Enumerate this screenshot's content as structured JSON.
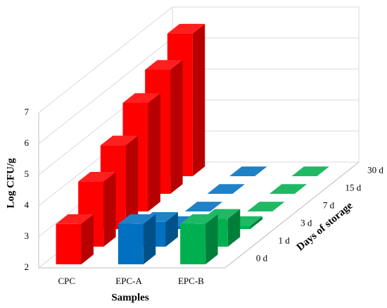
{
  "chart_data": {
    "type": "bar3d",
    "y_label": "Log CFU/g",
    "x_label": "Samples",
    "z_label": "Days of storage",
    "depth_categories": [
      "0 d",
      "1 d",
      "3 d",
      "7 d",
      "15 d",
      "30 d"
    ],
    "series": [
      {
        "name": "CPC",
        "color": "#ff0000",
        "values": [
          3.3,
          4.1,
          4.7,
          5.5,
          6.0,
          6.6
        ]
      },
      {
        "name": "EPC-A",
        "color": "#0070c0",
        "values": [
          3.3,
          2.8,
          2.1,
          2.0,
          2.0,
          2.0
        ]
      },
      {
        "name": "EPC-B",
        "color": "#00b050",
        "values": [
          3.3,
          2.9,
          2.1,
          2.0,
          2.0,
          2.0
        ]
      }
    ],
    "ylim": [
      2,
      7
    ],
    "yticks": [
      2,
      3,
      4,
      5,
      6,
      7
    ],
    "grid": true
  }
}
